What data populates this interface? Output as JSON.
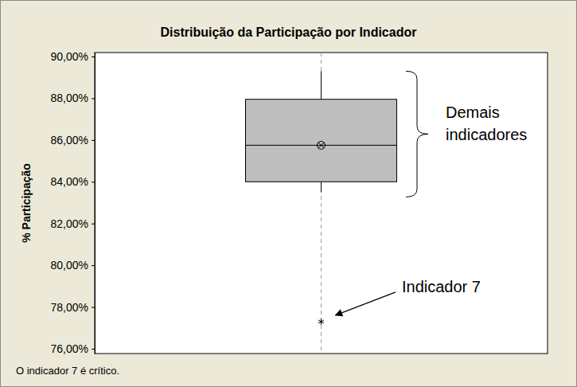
{
  "chart_data": {
    "type": "box",
    "title": "Distribuição da Participação por Indicador",
    "y_label": "% Participação",
    "box": {
      "whisker_low": 83.5,
      "q1": 84.0,
      "median": 85.75,
      "q3": 87.95,
      "whisker_high": 89.3,
      "mean": 85.75,
      "outliers": [
        77.3
      ]
    },
    "color": "#bebebe",
    "marker": "asterisk",
    "ylim": [
      75.77,
      90.19
    ],
    "yticks": [
      {
        "value": 76,
        "label": "76,00%"
      },
      {
        "value": 78,
        "label": "78,00%"
      },
      {
        "value": 80,
        "label": "80,00%"
      },
      {
        "value": 82,
        "label": "82,00%"
      },
      {
        "value": 84,
        "label": "84,00%"
      },
      {
        "value": 86,
        "label": "86,00%"
      },
      {
        "value": 88,
        "label": "88,00%"
      },
      {
        "value": 90,
        "label": "90,00%"
      }
    ],
    "grid": false,
    "tick_labels": "y",
    "annotations": [
      "Demais indicadores",
      "Indicador 7"
    ],
    "footnote": "O indicador 7 é crítico."
  }
}
